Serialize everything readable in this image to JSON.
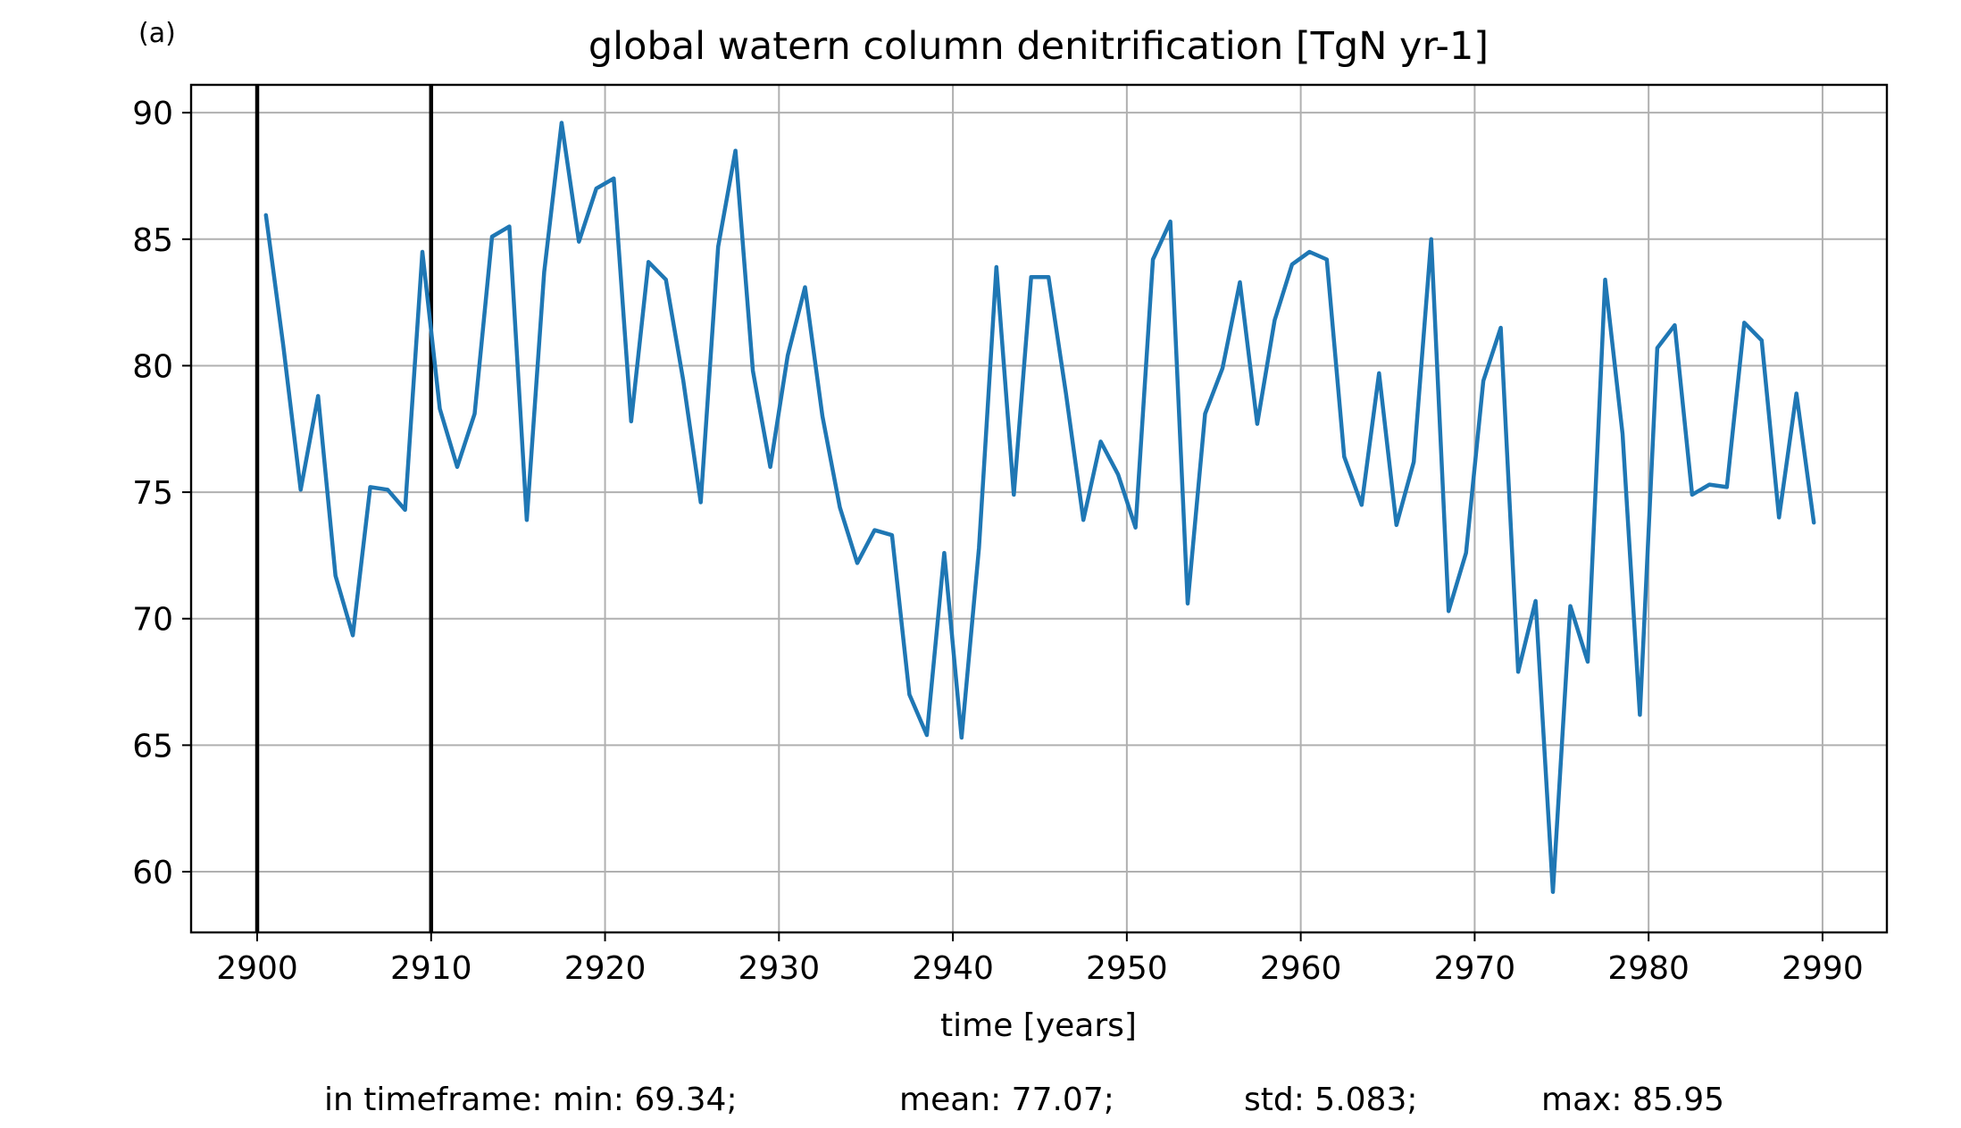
{
  "panel_label": "(a)",
  "footer": {
    "min": "in timeframe: min: 69.34;",
    "mean": "mean: 77.07;",
    "std": "std: 5.083;",
    "max": "max: 85.95"
  },
  "chart_data": {
    "type": "line",
    "title": "global watern column denitrification [TgN yr-1]",
    "xlabel": "time [years]",
    "ylabel": "",
    "xlim": [
      2896.2,
      2993.7
    ],
    "ylim": [
      57.6,
      91.1
    ],
    "x_ticks": [
      2900,
      2910,
      2920,
      2930,
      2940,
      2950,
      2960,
      2970,
      2980,
      2990
    ],
    "y_ticks": [
      60,
      65,
      70,
      75,
      80,
      85,
      90
    ],
    "grid": true,
    "vertical_markers": [
      2900,
      2910
    ],
    "series": [
      {
        "color": "#1f77b4",
        "x": [
          2900.5,
          2901.5,
          2902.5,
          2903.5,
          2904.5,
          2905.5,
          2906.5,
          2907.5,
          2908.5,
          2909.5,
          2910.5,
          2911.5,
          2912.5,
          2913.5,
          2914.5,
          2915.5,
          2916.5,
          2917.5,
          2918.5,
          2919.5,
          2920.5,
          2921.5,
          2922.5,
          2923.5,
          2924.5,
          2925.5,
          2926.5,
          2927.5,
          2928.5,
          2929.5,
          2930.5,
          2931.5,
          2932.5,
          2933.5,
          2934.5,
          2935.5,
          2936.5,
          2937.5,
          2938.5,
          2939.5,
          2940.5,
          2941.5,
          2942.5,
          2943.5,
          2944.5,
          2945.5,
          2946.5,
          2947.5,
          2948.5,
          2949.5,
          2950.5,
          2951.5,
          2952.5,
          2953.5,
          2954.5,
          2955.5,
          2956.5,
          2957.5,
          2958.5,
          2959.5,
          2960.5,
          2961.5,
          2962.5,
          2963.5,
          2964.5,
          2965.5,
          2966.5,
          2967.5,
          2968.5,
          2969.5,
          2970.5,
          2971.5,
          2972.5,
          2973.5,
          2974.5,
          2975.5,
          2976.5,
          2977.5,
          2978.5,
          2979.5,
          2980.5,
          2981.5,
          2982.5,
          2983.5,
          2984.5,
          2985.5,
          2986.5,
          2987.5,
          2988.5,
          2989.5
        ],
        "y": [
          85.95,
          80.8,
          75.1,
          78.8,
          71.7,
          69.34,
          75.2,
          75.1,
          74.3,
          84.5,
          78.3,
          76.0,
          78.1,
          85.1,
          85.5,
          73.9,
          83.7,
          89.6,
          84.9,
          87.0,
          87.4,
          77.8,
          84.1,
          83.4,
          79.4,
          74.6,
          84.7,
          88.5,
          79.8,
          76.0,
          80.4,
          83.1,
          78.0,
          74.4,
          72.2,
          73.5,
          73.3,
          67.0,
          65.4,
          72.6,
          65.3,
          72.8,
          83.9,
          74.9,
          83.5,
          83.5,
          78.9,
          73.9,
          77.0,
          75.7,
          73.6,
          84.2,
          85.7,
          70.6,
          78.1,
          79.9,
          83.3,
          77.7,
          81.8,
          84.0,
          84.5,
          84.2,
          76.4,
          74.5,
          79.7,
          73.7,
          76.2,
          85.0,
          70.3,
          72.6,
          79.4,
          81.5,
          67.9,
          70.7,
          59.2,
          70.5,
          68.3,
          83.4,
          77.3,
          66.2,
          80.7,
          81.6,
          74.9,
          75.3,
          75.2,
          81.7,
          81.0,
          74.0,
          78.9,
          73.8
        ]
      }
    ]
  }
}
